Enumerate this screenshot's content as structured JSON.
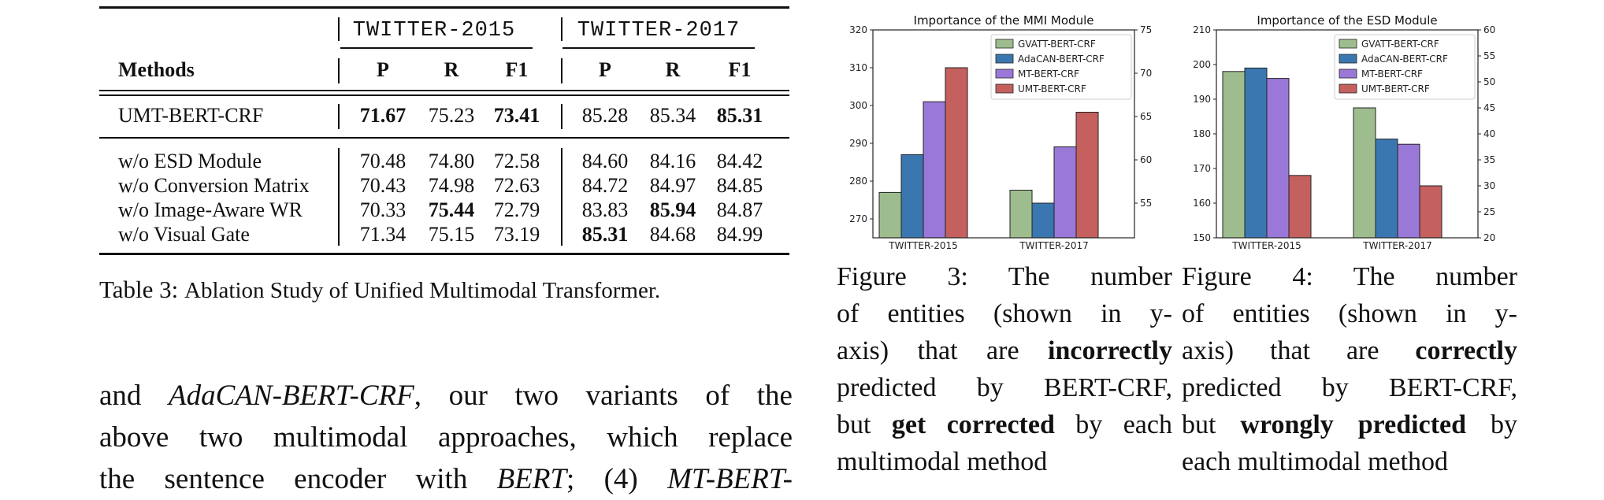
{
  "table": {
    "group_headers": [
      "TWITTER-2015",
      "TWITTER-2017"
    ],
    "methods_header": "Methods",
    "metric_headers": [
      "P",
      "R",
      "F1",
      "P",
      "R",
      "F1"
    ],
    "main_row": {
      "method": "UMT-BERT-CRF",
      "values": [
        "71.67",
        "75.23",
        "73.41",
        "85.28",
        "85.34",
        "85.31"
      ],
      "bold": [
        true,
        false,
        true,
        false,
        false,
        true
      ]
    },
    "ablation_rows": [
      {
        "method": "w/o ESD Module",
        "values": [
          "70.48",
          "74.80",
          "72.58",
          "84.60",
          "84.16",
          "84.42"
        ],
        "bold": [
          false,
          false,
          false,
          false,
          false,
          false
        ]
      },
      {
        "method": "w/o Conversion Matrix",
        "values": [
          "70.43",
          "74.98",
          "72.63",
          "84.72",
          "84.97",
          "84.85"
        ],
        "bold": [
          false,
          false,
          false,
          false,
          false,
          false
        ]
      },
      {
        "method": "w/o Image-Aware WR",
        "values": [
          "70.33",
          "75.44",
          "72.79",
          "83.83",
          "85.94",
          "84.87"
        ],
        "bold": [
          false,
          true,
          false,
          false,
          true,
          false
        ]
      },
      {
        "method": "w/o Visual Gate",
        "values": [
          "71.34",
          "75.15",
          "73.19",
          "85.31",
          "84.68",
          "84.99"
        ],
        "bold": [
          false,
          false,
          false,
          true,
          false,
          false
        ]
      }
    ],
    "caption_label": "Table 3:",
    "caption_text": "Ablation Study of Unified Multimodal Transformer."
  },
  "paragraph": {
    "line1": [
      {
        "t": "and "
      },
      {
        "t": "AdaCAN-BERT-CRF",
        "i": true
      },
      {
        "t": ", our two variants of the"
      }
    ],
    "line2": [
      {
        "t": "above two multimodal approaches, which replace"
      }
    ],
    "line3": [
      {
        "t": "the sentence encoder with "
      },
      {
        "t": "BERT",
        "i": true
      },
      {
        "t": "; (4) "
      },
      {
        "t": "MT-BERT-",
        "i": true
      }
    ]
  },
  "chart_data": [
    {
      "type": "bar",
      "title": "Importance of the MMI Module",
      "categories": [
        "TWITTER-2015",
        "TWITTER-2017"
      ],
      "series": [
        {
          "name": "GVATT-BERT-CRF",
          "values": [
            277,
            56.5
          ],
          "color": "#9ebd8f"
        },
        {
          "name": "AdaCAN-BERT-CRF",
          "values": [
            287,
            55
          ],
          "color": "#3a77b0"
        },
        {
          "name": "MT-BERT-CRF",
          "values": [
            301,
            61.5
          ],
          "color": "#9a78d8"
        },
        {
          "name": "UMT-BERT-CRF",
          "values": [
            310,
            65.5
          ],
          "color": "#c4605e"
        }
      ],
      "left_axis": {
        "range": [
          265,
          320
        ],
        "ticks": [
          270,
          280,
          290,
          300,
          310,
          320
        ]
      },
      "right_axis": {
        "range": [
          51,
          75
        ],
        "ticks": [
          55,
          60,
          65,
          70,
          75
        ]
      },
      "axis_per_category": [
        "left",
        "right"
      ],
      "legend_position": "top-right",
      "xlabel": "",
      "ylabel": ""
    },
    {
      "type": "bar",
      "title": "Importance of the ESD Module",
      "categories": [
        "TWITTER-2015",
        "TWITTER-2017"
      ],
      "series": [
        {
          "name": "GVATT-BERT-CRF",
          "values": [
            198,
            45
          ],
          "color": "#9ebd8f"
        },
        {
          "name": "AdaCAN-BERT-CRF",
          "values": [
            199,
            39
          ],
          "color": "#3a77b0"
        },
        {
          "name": "MT-BERT-CRF",
          "values": [
            196,
            38
          ],
          "color": "#9a78d8"
        },
        {
          "name": "UMT-BERT-CRF",
          "values": [
            168,
            30
          ],
          "color": "#c4605e"
        }
      ],
      "left_axis": {
        "range": [
          150,
          210
        ],
        "ticks": [
          150,
          160,
          170,
          180,
          190,
          200,
          210
        ]
      },
      "right_axis": {
        "range": [
          20,
          60
        ],
        "ticks": [
          20,
          25,
          30,
          35,
          40,
          45,
          50,
          55,
          60
        ]
      },
      "axis_per_category": [
        "left",
        "right"
      ],
      "legend_position": "top-right",
      "xlabel": "",
      "ylabel": ""
    }
  ],
  "figure_captions": [
    {
      "lines": [
        [
          {
            "t": "Figure 3:  The number"
          }
        ],
        [
          {
            "t": "of entities (shown in y-"
          }
        ],
        [
          {
            "t": "axis) that are "
          },
          {
            "t": "incorrectly",
            "b": true
          }
        ],
        [
          {
            "t": "predicted by BERT-CRF,"
          }
        ],
        [
          {
            "t": "but "
          },
          {
            "t": "get corrected",
            "b": true
          },
          {
            "t": " by each"
          }
        ],
        [
          {
            "t": "multimodal method"
          }
        ]
      ]
    },
    {
      "lines": [
        [
          {
            "t": "Figure 4:  The number"
          }
        ],
        [
          {
            "t": "of entities (shown in y-"
          }
        ],
        [
          {
            "t": "axis) that are "
          },
          {
            "t": "correctly",
            "b": true
          }
        ],
        [
          {
            "t": "predicted by BERT-CRF,"
          }
        ],
        [
          {
            "t": "but "
          },
          {
            "t": "wrongly predicted",
            "b": true
          },
          {
            "t": " by"
          }
        ],
        [
          {
            "t": "each multimodal method"
          }
        ]
      ]
    }
  ]
}
